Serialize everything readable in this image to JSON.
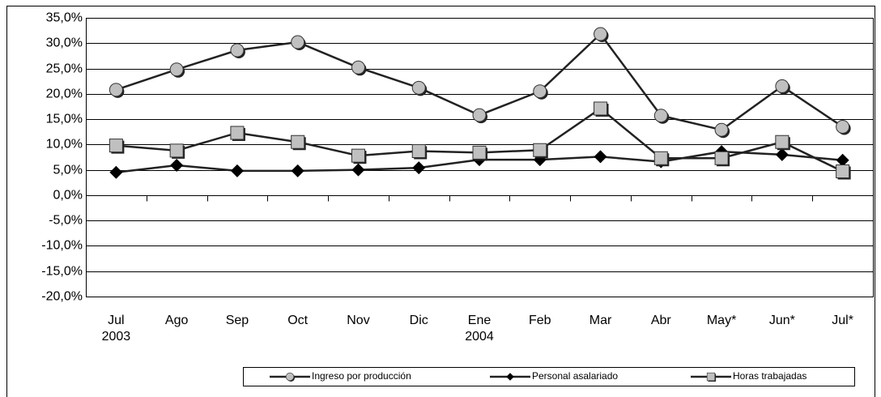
{
  "chart_data": {
    "type": "line",
    "categories": [
      "Jul\n2003",
      "Ago",
      "Sep",
      "Oct",
      "Nov",
      "Dic",
      "Ene\n2004",
      "Feb",
      "Mar",
      "Abr",
      "May*",
      "Jun*",
      "Jul*"
    ],
    "series": [
      {
        "name": "Ingreso por producción",
        "color": "#222222",
        "marker": "circle",
        "values": [
          20.8,
          24.8,
          28.6,
          30.2,
          25.2,
          21.2,
          15.8,
          20.5,
          31.8,
          15.7,
          12.9,
          21.5,
          13.5
        ]
      },
      {
        "name": "Personal asalariado",
        "color": "#222222",
        "marker": "diamond",
        "values": [
          4.5,
          5.9,
          4.8,
          4.8,
          5.0,
          5.4,
          7.0,
          7.0,
          7.6,
          6.6,
          8.6,
          8.0,
          6.9
        ]
      },
      {
        "name": "Horas trabajadas",
        "color": "#222222",
        "marker": "square",
        "values": [
          9.8,
          8.8,
          12.3,
          10.5,
          7.8,
          8.7,
          8.4,
          8.9,
          17.1,
          7.3,
          7.3,
          10.5,
          4.7
        ]
      }
    ],
    "ylim": [
      -20,
      35
    ],
    "yticks": [
      {
        "value": -20,
        "label": "-20,0%"
      },
      {
        "value": -15,
        "label": "-15,0%"
      },
      {
        "value": -10,
        "label": "-10,0%"
      },
      {
        "value": -5,
        "label": "-5,0%"
      },
      {
        "value": 0,
        "label": "0,0%"
      },
      {
        "value": 5,
        "label": "5,0%"
      },
      {
        "value": 10,
        "label": "10,0%"
      },
      {
        "value": 15,
        "label": "15,0%"
      },
      {
        "value": 20,
        "label": "20,0%"
      },
      {
        "value": 25,
        "label": "25,0%"
      },
      {
        "value": 30,
        "label": "30,0%"
      },
      {
        "value": 35,
        "label": "35,0%"
      }
    ],
    "grid": true,
    "legend": "bottom"
  }
}
